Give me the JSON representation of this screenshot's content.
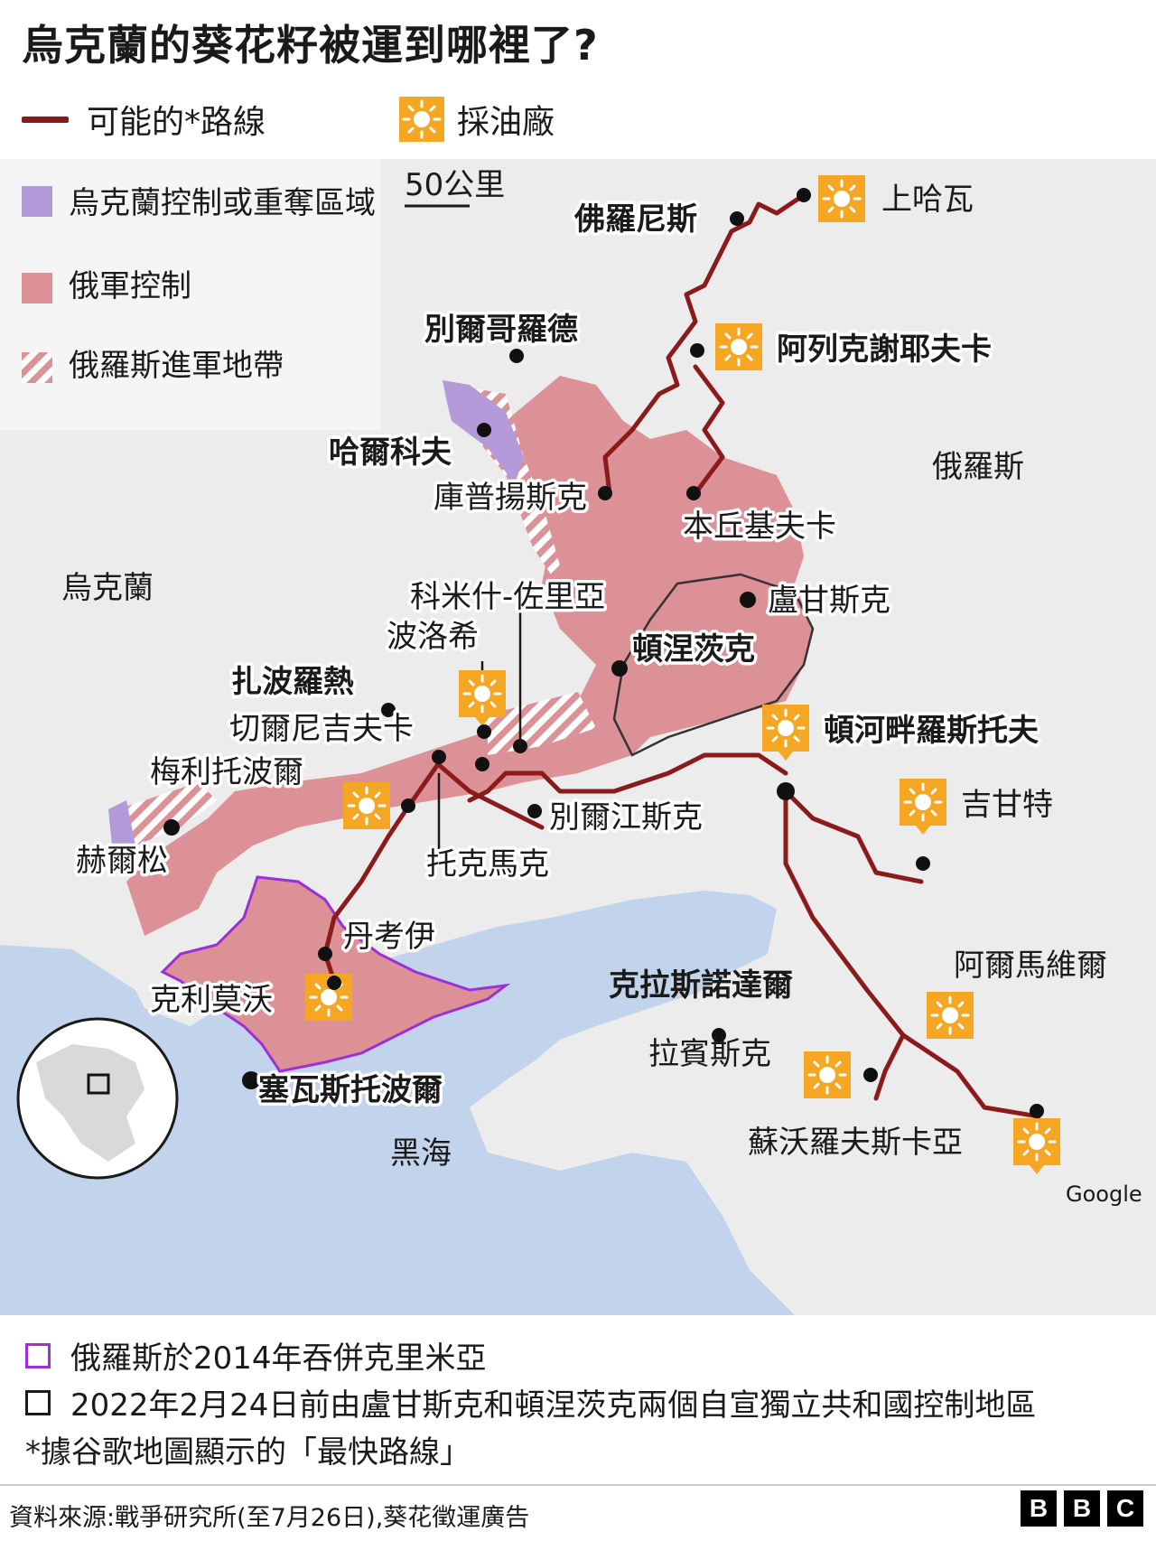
{
  "title": "烏克蘭的葵花籽被運到哪裡了?",
  "legend_top": {
    "route_label": "可能的*路線",
    "mill_label": "採油廠"
  },
  "legend_map": {
    "ukraine_control": "烏克蘭控制或重奪區域",
    "russia_control": "俄軍控制",
    "russia_advance": "俄羅斯進軍地帶"
  },
  "scale_label": "50公里",
  "colors": {
    "russia_control": "#dc9196",
    "ukraine_control": "#b59ad9",
    "route": "#8b1a1a",
    "sea": "#c2d4ec",
    "land": "#ececec",
    "crimea_border": "#9b30d9",
    "mill": "#f5a623"
  },
  "labels": {
    "upper_khava": "上哈瓦",
    "fronis": "佛羅尼斯",
    "belgorod": "別爾哥羅德",
    "alexeyevka": "阿列克謝耶夫卡",
    "kharkiv": "哈爾科夫",
    "russia": "俄羅斯",
    "kupiansk": "庫普揚斯克",
    "benchukivka": "本丘基夫卡",
    "ukraine": "烏克蘭",
    "komysh_zorya": "科米什-佐里亞",
    "luhansk": "盧甘斯克",
    "polohy": "波洛希",
    "donetsk": "頓涅茨克",
    "zaporizhzhia": "扎波羅熱",
    "chernihivka": "切爾尼吉夫卡",
    "rostov": "頓河畔羅斯托夫",
    "melitopol": "梅利托波爾",
    "tikhoretsk": "吉甘特",
    "berdiansk": "別爾江斯克",
    "kherson": "赫爾松",
    "tokmak": "托克馬克",
    "dzhankoi": "丹考伊",
    "armavir": "阿爾馬維爾",
    "krasnodar": "克拉斯諾達爾",
    "kremenchuk": "克利莫沃",
    "labinsk": "拉賓斯克",
    "sevastopol": "塞瓦斯托波爾",
    "sovskaya": "蘇沃羅夫斯卡亞",
    "black_sea": "黑海",
    "google": "Google"
  },
  "legend_bottom": {
    "crimea": "俄羅斯於2014年吞併克里米亞",
    "pre2022": "2022年2月24日前由盧甘斯克和頓涅茨克兩個自宣獨立共和國控制地區",
    "note": "*據谷歌地圖顯示的「最快路線」"
  },
  "source": "資料來源:戰爭研究所(至7月26日),葵花徵運廣告",
  "brand": [
    "B",
    "B",
    "C"
  ]
}
